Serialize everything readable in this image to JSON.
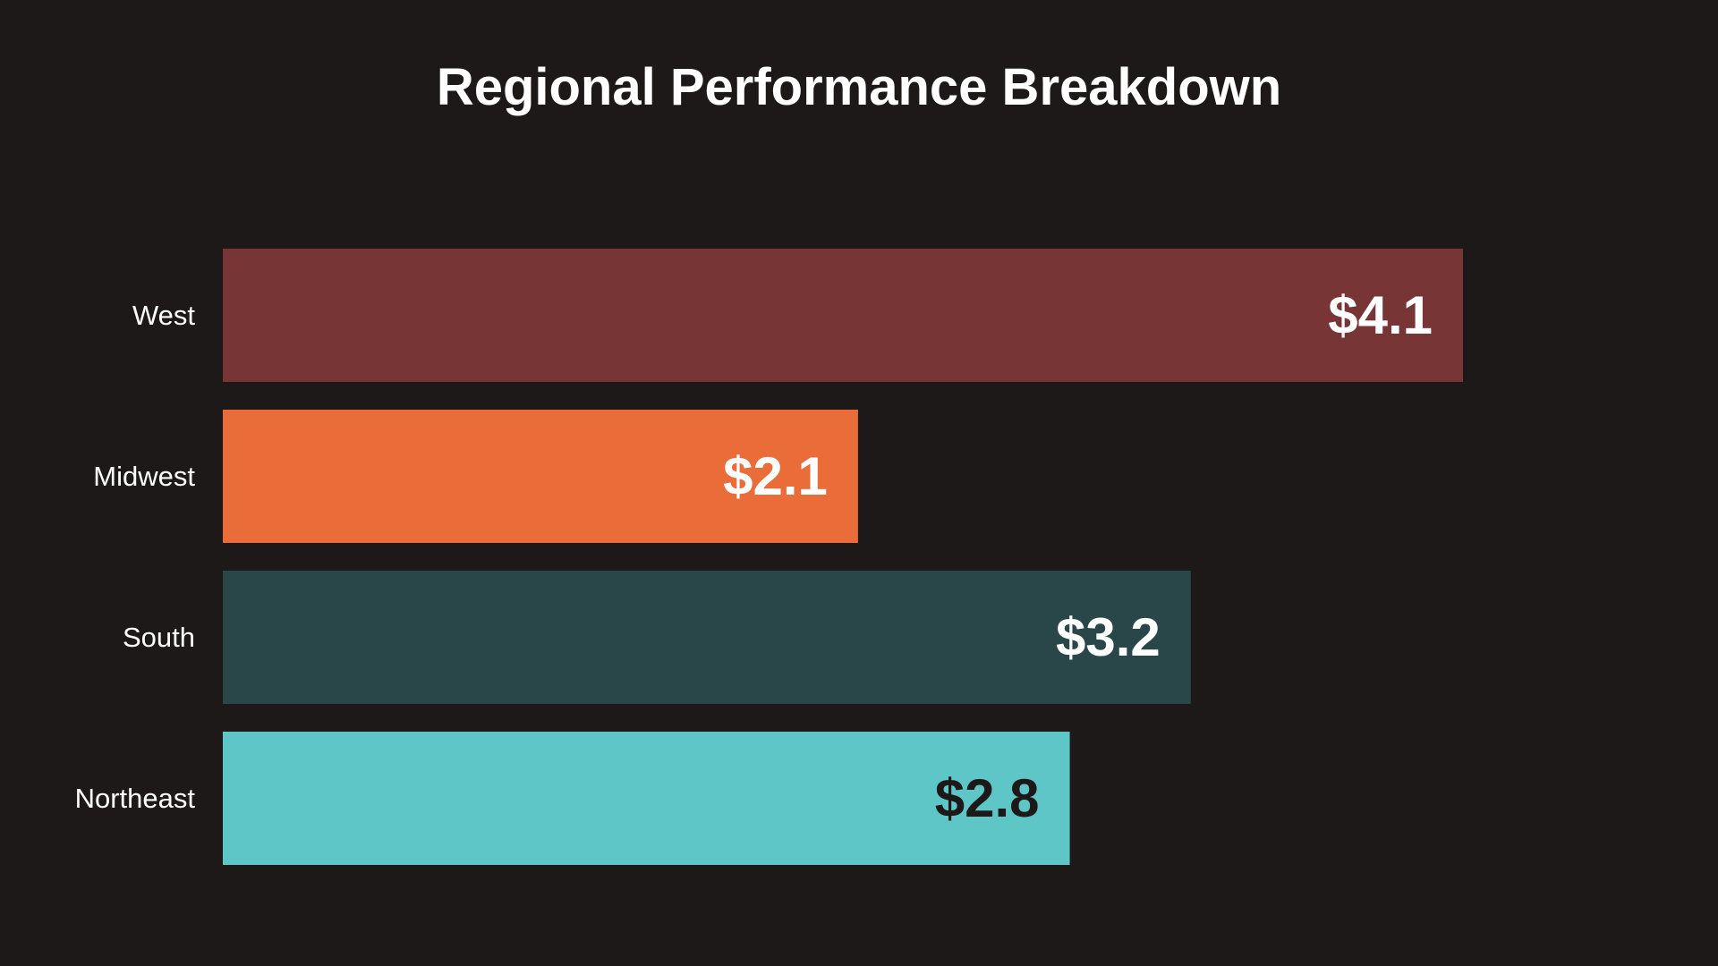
{
  "chart_data": {
    "type": "bar",
    "orientation": "horizontal",
    "title": "Regional Performance Breakdown",
    "categories": [
      "West",
      "Midwest",
      "South",
      "Northeast"
    ],
    "values": [
      4.1,
      2.1,
      3.2,
      2.8
    ],
    "value_labels": [
      "$4.1",
      "$2.1",
      "$3.2",
      "$2.8"
    ],
    "bar_colors": [
      "#773536",
      "#e96c39",
      "#294748",
      "#5ec6c6"
    ],
    "value_label_colors": [
      "#ffffff",
      "#ffffff",
      "#ffffff",
      "#1e1919"
    ],
    "xlabel": "",
    "ylabel": "",
    "xlim": [
      0,
      4.1
    ],
    "grid": false,
    "legend": "none"
  },
  "colors": {
    "background": "#1e1919",
    "text": "#ffffff"
  }
}
